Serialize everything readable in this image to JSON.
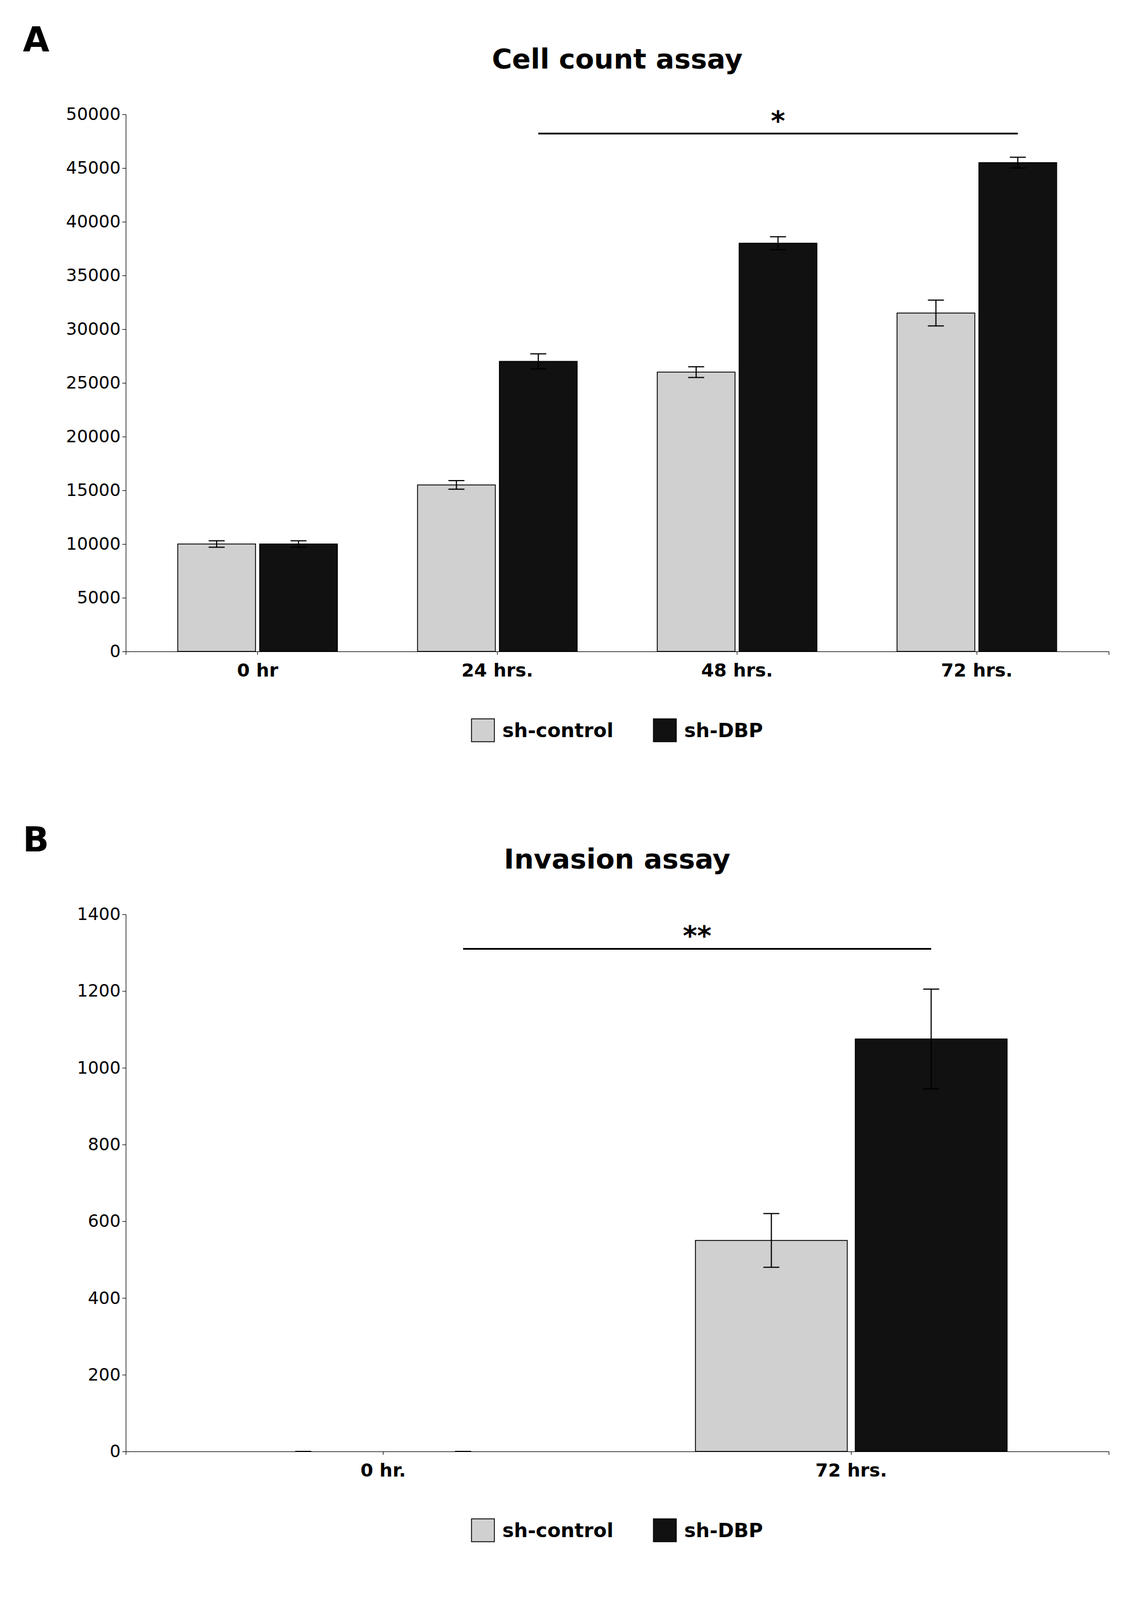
{
  "chart_data": [
    {
      "type": "bar",
      "title": "Cell count assay",
      "panel_label": "A",
      "categories": [
        "0 hr",
        "24 hrs.",
        "48 hrs.",
        "72 hrs."
      ],
      "series": [
        {
          "name": "sh-control",
          "color": "#d0d0d0",
          "values": [
            10000,
            15500,
            26000,
            31500
          ],
          "errors": [
            300,
            400,
            500,
            1200
          ]
        },
        {
          "name": "sh-DBP",
          "color": "#111111",
          "values": [
            10000,
            27000,
            38000,
            45500
          ],
          "errors": [
            300,
            700,
            600,
            500
          ]
        }
      ],
      "ylim": [
        0,
        50000
      ],
      "yticks": [
        0,
        5000,
        10000,
        15000,
        20000,
        25000,
        30000,
        35000,
        40000,
        45000,
        50000
      ],
      "annotations": [
        {
          "text": "*",
          "y": 48200,
          "from": "24 hrs.",
          "to": "72 hrs.",
          "series": "sh-DBP"
        }
      ],
      "legend": "bottom",
      "grid": false
    },
    {
      "type": "bar",
      "title": "Invasion assay",
      "panel_label": "B",
      "categories": [
        "0 hr.",
        "72 hrs."
      ],
      "series": [
        {
          "name": "sh-control",
          "color": "#d0d0d0",
          "values": [
            0,
            550
          ],
          "errors": [
            0,
            70
          ]
        },
        {
          "name": "sh-DBP",
          "color": "#111111",
          "values": [
            0,
            1075
          ],
          "errors": [
            0,
            130
          ]
        }
      ],
      "ylim": [
        0,
        1400
      ],
      "yticks": [
        0,
        200,
        400,
        600,
        800,
        1000,
        1200,
        1400
      ],
      "annotations": [
        {
          "text": "**",
          "y": 1310,
          "from": "0 hr.",
          "to": "72 hrs.",
          "series": "sh-DBP"
        }
      ],
      "legend": "bottom",
      "grid": false
    }
  ]
}
